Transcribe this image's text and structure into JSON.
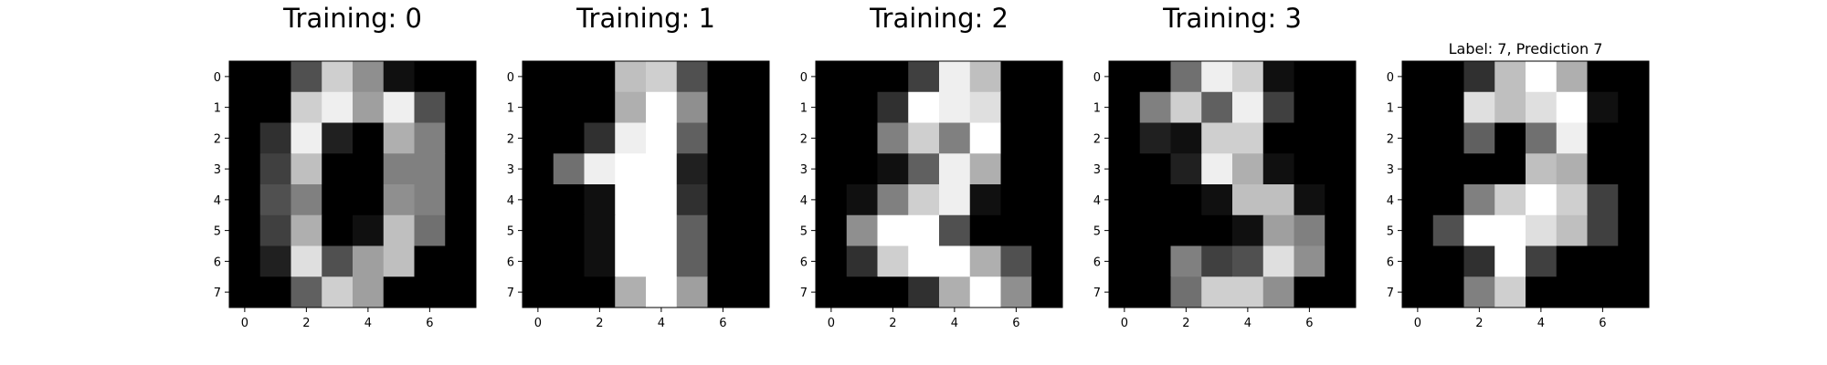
{
  "chart_data": [
    {
      "type": "heatmap",
      "title": "Training: 0",
      "colormap": "gray",
      "vmin": 0,
      "vmax": 16,
      "x_ticks": [
        0,
        2,
        4,
        6
      ],
      "y_ticks": [
        0,
        1,
        2,
        3,
        4,
        5,
        6,
        7
      ],
      "grid": false,
      "values": [
        [
          0,
          0,
          5,
          13,
          9,
          1,
          0,
          0
        ],
        [
          0,
          0,
          13,
          15,
          10,
          15,
          5,
          0
        ],
        [
          0,
          3,
          15,
          2,
          0,
          11,
          8,
          0
        ],
        [
          0,
          4,
          12,
          0,
          0,
          8,
          8,
          0
        ],
        [
          0,
          5,
          8,
          0,
          0,
          9,
          8,
          0
        ],
        [
          0,
          4,
          11,
          0,
          1,
          12,
          7,
          0
        ],
        [
          0,
          2,
          14,
          5,
          10,
          12,
          0,
          0
        ],
        [
          0,
          0,
          6,
          13,
          10,
          0,
          0,
          0
        ]
      ]
    },
    {
      "type": "heatmap",
      "title": "Training: 1",
      "colormap": "gray",
      "vmin": 0,
      "vmax": 16,
      "x_ticks": [
        0,
        2,
        4,
        6
      ],
      "y_ticks": [
        0,
        1,
        2,
        3,
        4,
        5,
        6,
        7
      ],
      "grid": false,
      "values": [
        [
          0,
          0,
          0,
          12,
          13,
          5,
          0,
          0
        ],
        [
          0,
          0,
          0,
          11,
          16,
          9,
          0,
          0
        ],
        [
          0,
          0,
          3,
          15,
          16,
          6,
          0,
          0
        ],
        [
          0,
          7,
          15,
          16,
          16,
          2,
          0,
          0
        ],
        [
          0,
          0,
          1,
          16,
          16,
          3,
          0,
          0
        ],
        [
          0,
          0,
          1,
          16,
          16,
          6,
          0,
          0
        ],
        [
          0,
          0,
          1,
          16,
          16,
          6,
          0,
          0
        ],
        [
          0,
          0,
          0,
          11,
          16,
          10,
          0,
          0
        ]
      ]
    },
    {
      "type": "heatmap",
      "title": "Training: 2",
      "colormap": "gray",
      "vmin": 0,
      "vmax": 16,
      "x_ticks": [
        0,
        2,
        4,
        6
      ],
      "y_ticks": [
        0,
        1,
        2,
        3,
        4,
        5,
        6,
        7
      ],
      "grid": false,
      "values": [
        [
          0,
          0,
          0,
          4,
          15,
          12,
          0,
          0
        ],
        [
          0,
          0,
          3,
          16,
          15,
          14,
          0,
          0
        ],
        [
          0,
          0,
          8,
          13,
          8,
          16,
          0,
          0
        ],
        [
          0,
          0,
          1,
          6,
          15,
          11,
          0,
          0
        ],
        [
          0,
          1,
          8,
          13,
          15,
          1,
          0,
          0
        ],
        [
          0,
          9,
          16,
          16,
          5,
          0,
          0,
          0
        ],
        [
          0,
          3,
          13,
          16,
          16,
          11,
          5,
          0
        ],
        [
          0,
          0,
          0,
          3,
          11,
          16,
          9,
          0
        ]
      ]
    },
    {
      "type": "heatmap",
      "title": "Training: 3",
      "colormap": "gray",
      "vmin": 0,
      "vmax": 16,
      "x_ticks": [
        0,
        2,
        4,
        6
      ],
      "y_ticks": [
        0,
        1,
        2,
        3,
        4,
        5,
        6,
        7
      ],
      "grid": false,
      "values": [
        [
          0,
          0,
          7,
          15,
          13,
          1,
          0,
          0
        ],
        [
          0,
          8,
          13,
          6,
          15,
          4,
          0,
          0
        ],
        [
          0,
          2,
          1,
          13,
          13,
          0,
          0,
          0
        ],
        [
          0,
          0,
          2,
          15,
          11,
          1,
          0,
          0
        ],
        [
          0,
          0,
          0,
          1,
          12,
          12,
          1,
          0
        ],
        [
          0,
          0,
          0,
          0,
          1,
          10,
          8,
          0
        ],
        [
          0,
          0,
          8,
          4,
          5,
          14,
          9,
          0
        ],
        [
          0,
          0,
          7,
          13,
          13,
          9,
          0,
          0
        ]
      ]
    },
    {
      "type": "heatmap",
      "title": "Label: 7, Prediction 7",
      "colormap": "gray",
      "vmin": 0,
      "vmax": 16,
      "x_ticks": [
        0,
        2,
        4,
        6
      ],
      "y_ticks": [
        0,
        1,
        2,
        3,
        4,
        5,
        6,
        7
      ],
      "grid": false,
      "values": [
        [
          0,
          0,
          3,
          12,
          16,
          11,
          0,
          0
        ],
        [
          0,
          0,
          14,
          12,
          14,
          16,
          1,
          0
        ],
        [
          0,
          0,
          6,
          0,
          7,
          15,
          0,
          0
        ],
        [
          0,
          0,
          0,
          0,
          12,
          11,
          0,
          0
        ],
        [
          0,
          0,
          8,
          13,
          16,
          13,
          4,
          0
        ],
        [
          0,
          5,
          16,
          16,
          14,
          12,
          4,
          0
        ],
        [
          0,
          0,
          3,
          16,
          4,
          0,
          0,
          0
        ],
        [
          0,
          0,
          8,
          13,
          0,
          0,
          0,
          0
        ]
      ]
    }
  ]
}
